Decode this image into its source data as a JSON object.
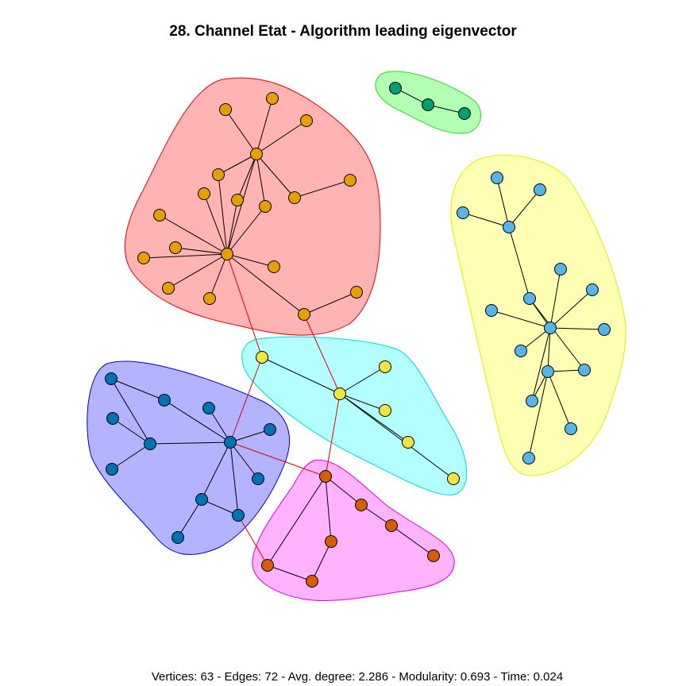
{
  "title": "28. Channel Etat - Algorithm leading eigenvector",
  "stats": "Vertices: 63 - Edges: 72 - Avg. degree: 2.286 - Modularity: 0.693 - Time: 0.024",
  "colors": {
    "node_orange": "#E69F00",
    "node_green": "#009E73",
    "node_sky": "#56B4E9",
    "node_yellow": "#F0E442",
    "node_blue": "#0072B2",
    "node_vermillion": "#D55E00",
    "hull_red_fill": "#FFB3B3",
    "hull_red_stroke": "#E00000",
    "hull_green_fill": "#B3FFB3",
    "hull_green_stroke": "#22DD22",
    "hull_yellow_fill": "#FFFFB3",
    "hull_yellow_stroke": "#E8E800",
    "hull_cyan_fill": "#B3FFFF",
    "hull_cyan_stroke": "#00D8D8",
    "hull_blue_fill": "#B3B3FF",
    "hull_blue_stroke": "#0000C0",
    "hull_magenta_fill": "#FFB3FF",
    "hull_magenta_stroke": "#E000E0",
    "intra_edge": "#000000",
    "inter_edge": "#E00000"
  }
}
